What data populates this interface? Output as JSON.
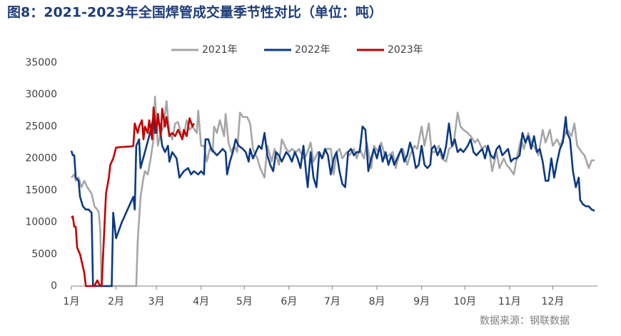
{
  "chart_data": {
    "type": "line",
    "title": "图8：2021-2023年全国焊管成交量季节性对比（单位：吨）",
    "source": "数据来源：钢联数据",
    "xlim": [
      0,
      365
    ],
    "xticks": [
      {
        "value": 0,
        "label": "1月"
      },
      {
        "value": 31,
        "label": "2月"
      },
      {
        "value": 59,
        "label": "3月"
      },
      {
        "value": 90,
        "label": "4月"
      },
      {
        "value": 120,
        "label": "5月"
      },
      {
        "value": 151,
        "label": "6月"
      },
      {
        "value": 181,
        "label": "7月"
      },
      {
        "value": 212,
        "label": "8月"
      },
      {
        "value": 243,
        "label": "9月"
      },
      {
        "value": 273,
        "label": "10月"
      },
      {
        "value": 304,
        "label": "11月"
      },
      {
        "value": 334,
        "label": "12月"
      }
    ],
    "ylim": [
      0,
      35000
    ],
    "yticks": [
      0,
      5000,
      10000,
      15000,
      20000,
      25000,
      30000,
      35000
    ],
    "legend": "top",
    "series": [
      {
        "name": "2021年",
        "color": "#a6a6a6",
        "x": [
          0,
          2,
          3,
          5,
          7,
          9,
          11,
          14,
          16,
          18,
          19,
          20,
          21,
          45,
          46,
          48,
          50,
          51,
          53,
          55,
          57,
          58,
          60,
          62,
          64,
          66,
          68,
          70,
          72,
          74,
          76,
          78,
          80,
          82,
          84,
          87,
          88,
          90,
          92,
          94,
          96,
          98,
          99,
          101,
          103,
          106,
          107,
          109,
          111,
          113,
          115,
          117,
          119,
          122,
          124,
          126,
          129,
          131,
          134,
          136,
          139,
          141,
          144,
          146,
          149,
          151,
          153,
          156,
          158,
          161,
          163,
          166,
          168,
          171,
          174,
          177,
          180,
          182,
          184,
          186,
          188,
          191,
          193,
          196,
          198,
          200,
          203,
          205,
          208,
          210,
          213,
          215,
          218,
          220,
          223,
          225,
          228,
          230,
          233,
          235,
          238,
          240,
          243,
          245,
          248,
          250,
          252,
          255,
          257,
          260,
          262,
          265,
          268,
          270,
          272,
          275,
          277,
          280,
          282,
          285,
          287,
          290,
          292,
          295,
          297,
          300,
          302,
          304,
          307,
          309,
          312,
          314,
          317,
          319,
          322,
          324,
          327,
          329,
          332,
          334,
          337,
          339,
          342,
          344,
          347,
          349,
          351,
          354,
          356,
          359,
          361,
          363
        ],
        "values": [
          17000,
          17500,
          16500,
          17000,
          15500,
          16500,
          15500,
          14500,
          12500,
          12000,
          11500,
          9000,
          0,
          0,
          7000,
          14000,
          17000,
          18000,
          17500,
          20000,
          23000,
          29700,
          22000,
          24000,
          25000,
          29000,
          24000,
          23000,
          25500,
          25700,
          24000,
          23500,
          26000,
          24500,
          25000,
          24000,
          27500,
          22000,
          22000,
          19500,
          21500,
          21000,
          25000,
          24000,
          26000,
          23500,
          27000,
          22500,
          21000,
          22000,
          21000,
          27200,
          26500,
          26500,
          25500,
          21500,
          20000,
          18500,
          17000,
          22000,
          19500,
          21500,
          19000,
          23000,
          21500,
          21000,
          21500,
          21000,
          21500,
          20000,
          20500,
          22500,
          19500,
          21000,
          20000,
          21500,
          21500,
          17500,
          21000,
          21500,
          20000,
          21000,
          20500,
          21500,
          20000,
          21500,
          20000,
          22500,
          18500,
          22000,
          21000,
          22500,
          20000,
          20500,
          21000,
          18500,
          21000,
          21500,
          19000,
          20500,
          22000,
          21500,
          25000,
          22000,
          25500,
          21000,
          21000,
          22000,
          20000,
          19500,
          21500,
          22000,
          27200,
          25000,
          24500,
          24000,
          23500,
          22500,
          23000,
          21500,
          22000,
          21000,
          18000,
          21000,
          18500,
          20000,
          19000,
          18500,
          17500,
          20000,
          23000,
          21500,
          24000,
          22500,
          21500,
          20500,
          24500,
          22500,
          24500,
          22000,
          23000,
          22000,
          23500,
          24500,
          23500,
          25500,
          22000,
          21000,
          20500,
          18500,
          19700,
          19700
        ]
      },
      {
        "name": "2022年",
        "color": "#0b3a82",
        "x": [
          0,
          1,
          2,
          3,
          5,
          6,
          8,
          10,
          12,
          14,
          15,
          28,
          29,
          31,
          35,
          39,
          43,
          44,
          45,
          47,
          48,
          51,
          54,
          57,
          58,
          60,
          61,
          63,
          65,
          67,
          68,
          70,
          73,
          75,
          78,
          81,
          83,
          85,
          88,
          90,
          92,
          93,
          95,
          97,
          99,
          101,
          103,
          105,
          107,
          108,
          110,
          112,
          114,
          116,
          119,
          121,
          123,
          124,
          126,
          128,
          130,
          132,
          134,
          136,
          138,
          140,
          142,
          144,
          146,
          149,
          151,
          153,
          155,
          157,
          159,
          161,
          163,
          164,
          166,
          168,
          170,
          172,
          174,
          176,
          178,
          180,
          182,
          184,
          186,
          188,
          190,
          192,
          194,
          196,
          198,
          200,
          202,
          204,
          206,
          208,
          210,
          212,
          214,
          216,
          218,
          220,
          222,
          224,
          227,
          229,
          231,
          233,
          235,
          237,
          239,
          241,
          243,
          245,
          247,
          249,
          250,
          252,
          254,
          256,
          258,
          260,
          262,
          264,
          266,
          268,
          270,
          272,
          275,
          277,
          279,
          281,
          283,
          285,
          287,
          289,
          291,
          293,
          295,
          297,
          299,
          301,
          303,
          305,
          307,
          309,
          311,
          313,
          315,
          317,
          319,
          321,
          323,
          325,
          327,
          329,
          331,
          333,
          335,
          337,
          339,
          341,
          343,
          344,
          346,
          348,
          350,
          352,
          353,
          355,
          357,
          359,
          361,
          363
        ],
        "values": [
          21200,
          20500,
          20500,
          17000,
          16500,
          14000,
          12500,
          12000,
          12000,
          11500,
          0,
          0,
          11500,
          7500,
          10000,
          12000,
          14000,
          12000,
          22000,
          23000,
          18500,
          21000,
          23500,
          26500,
          24000,
          26000,
          25500,
          22000,
          21000,
          22000,
          19500,
          21000,
          20000,
          17000,
          18000,
          18500,
          17500,
          18000,
          17500,
          18000,
          17500,
          23000,
          23000,
          21500,
          21000,
          20500,
          21000,
          21500,
          21000,
          17500,
          19500,
          21000,
          23000,
          22000,
          21500,
          21000,
          19500,
          21500,
          20000,
          21000,
          22000,
          21500,
          24000,
          20500,
          19000,
          18000,
          21000,
          20500,
          19500,
          21000,
          20500,
          19500,
          21000,
          20000,
          18500,
          22000,
          17500,
          15500,
          21000,
          17000,
          15500,
          21000,
          20000,
          21500,
          20500,
          17500,
          20000,
          21000,
          18000,
          16000,
          15500,
          21000,
          21500,
          20500,
          21000,
          21000,
          25000,
          24500,
          18000,
          20000,
          21500,
          20000,
          22000,
          19500,
          21000,
          19000,
          20500,
          19000,
          20500,
          21500,
          19500,
          20500,
          22500,
          21000,
          18500,
          19000,
          22000,
          19000,
          18500,
          19000,
          21500,
          22000,
          20500,
          21500,
          20000,
          22000,
          25500,
          22000,
          23000,
          21000,
          21500,
          21000,
          22000,
          23000,
          21000,
          20500,
          21000,
          21500,
          20000,
          22000,
          20500,
          20000,
          21500,
          22000,
          20500,
          21000,
          21500,
          19500,
          20000,
          20000,
          20500,
          24000,
          22500,
          23500,
          21500,
          23500,
          21000,
          21500,
          19500,
          16500,
          16500,
          20000,
          17000,
          19500,
          21500,
          22500,
          26500,
          24000,
          23000,
          18000,
          15500,
          17000,
          13500,
          12800,
          12500,
          12500,
          12000,
          11800
        ]
      },
      {
        "name": "2023年",
        "color": "#c00000",
        "x": [
          0,
          1,
          2,
          3,
          4,
          6,
          9,
          10,
          16,
          18,
          20,
          21,
          23,
          24,
          26,
          27,
          29,
          31,
          35,
          42,
          43,
          44,
          46,
          47,
          49,
          50,
          51,
          53,
          54,
          56,
          57,
          59,
          60,
          62,
          63,
          65,
          66,
          68,
          70,
          72,
          74,
          77,
          78,
          80,
          82,
          84,
          85
        ],
        "values": [
          10700,
          10900,
          9300,
          9300,
          6000,
          5000,
          2000,
          0,
          0,
          900,
          0,
          0,
          9500,
          14500,
          17000,
          19000,
          20000,
          21700,
          21800,
          21900,
          22000,
          25500,
          24000,
          25000,
          26000,
          23000,
          25000,
          24000,
          26000,
          23000,
          28000,
          24000,
          27000,
          23500,
          27800,
          25000,
          26500,
          23500,
          24000,
          23500,
          24500,
          23000,
          24500,
          23500,
          26300,
          25000,
          25500
        ]
      }
    ]
  }
}
